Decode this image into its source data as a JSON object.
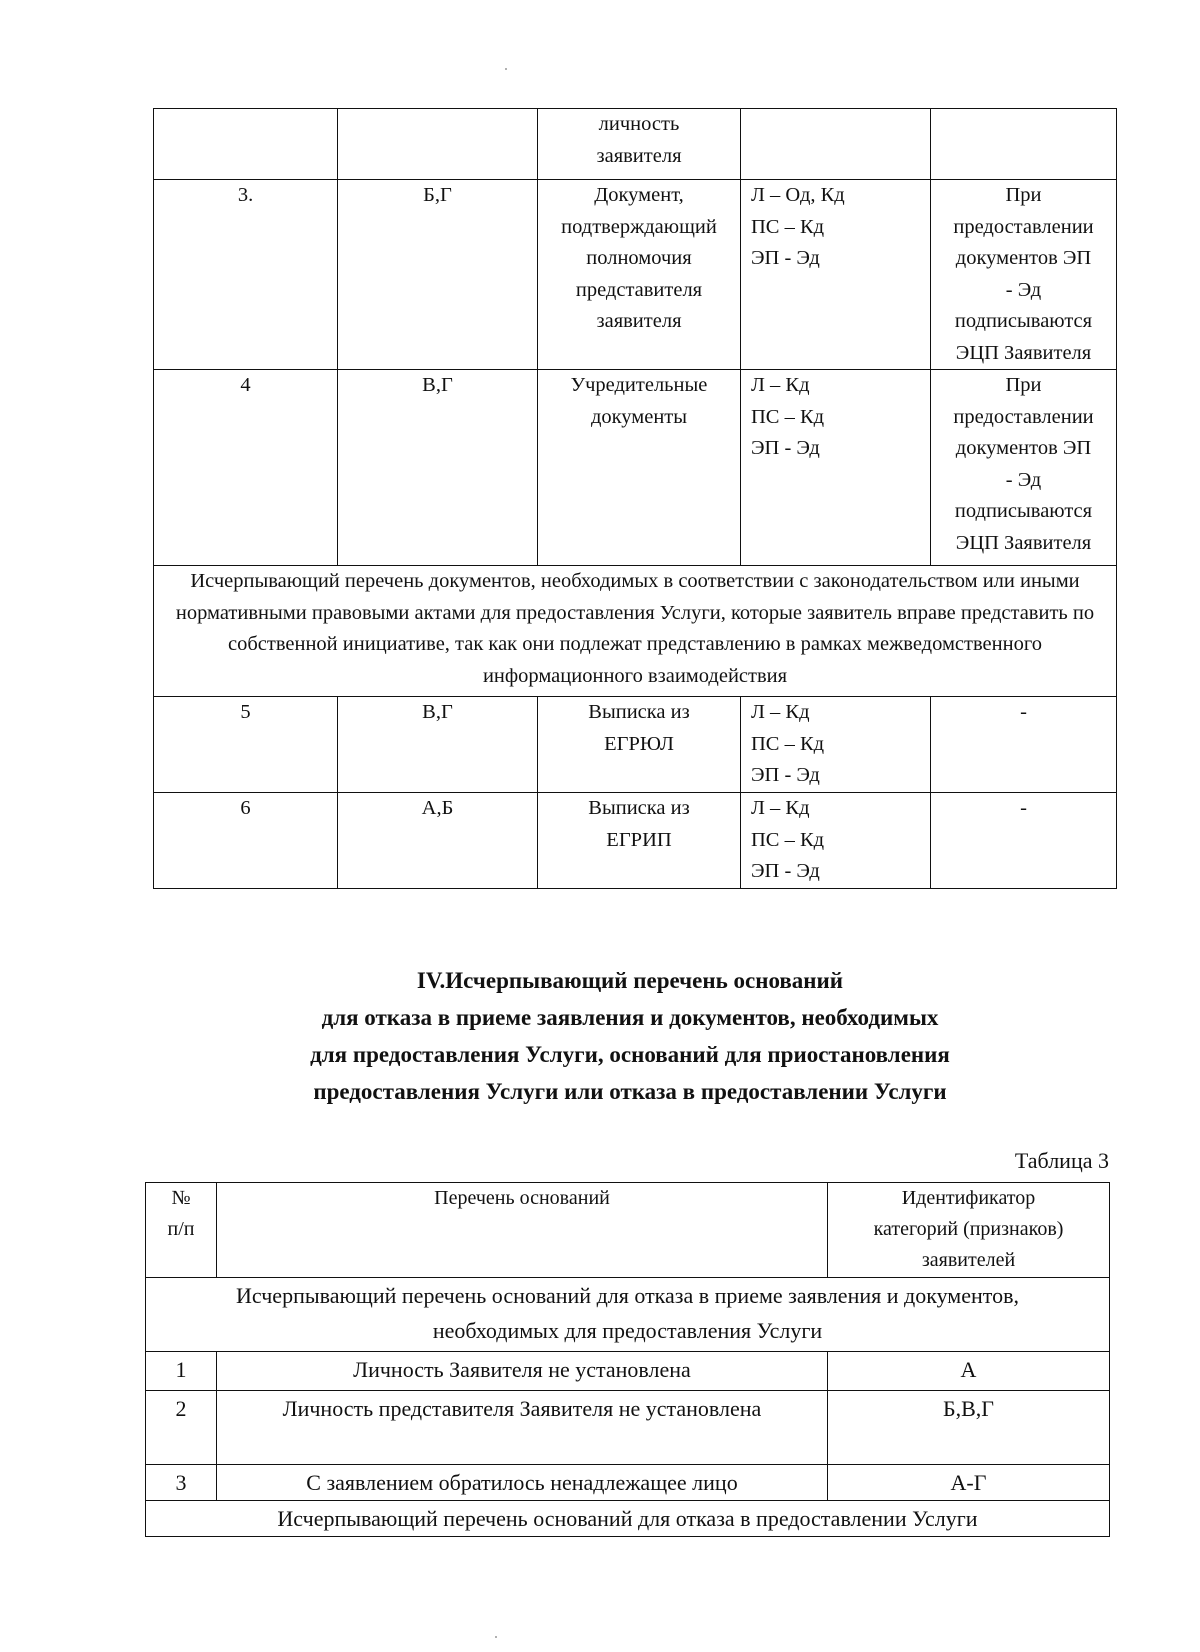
{
  "table2_continued": {
    "rows": [
      {
        "num": "",
        "category": "",
        "document": "личность\nзаявителя",
        "form": "",
        "note": ""
      },
      {
        "num": "3.",
        "category": "Б,Г",
        "document": "Документ,\nподтверждающий\nполномочия\nпредставителя\nзаявителя",
        "form": "Л – Од, Кд\nПС – Кд\nЭП - Эд",
        "note": "При\nпредоставлении\nдокументов ЭП\n- Эд\nподписываются\nЭЦП Заявителя"
      },
      {
        "num": "4",
        "category": "В,Г",
        "document": "Учредительные\nдокументы",
        "form": "Л – Кд\nПС – Кд\nЭП - Эд",
        "note": "При\nпредоставлении\nдокументов ЭП\n- Эд\nподписываются\nЭЦП Заявителя"
      }
    ],
    "section_row": "Исчерпывающий перечень документов, необходимых в соответствии с законодательством или иными нормативными правовыми актами для предоставления Услуги, которые заявитель вправе представить по собственной инициативе, так как они подлежат представлению в рамках межведомственного информационного взаимодействия",
    "rows2": [
      {
        "num": "5",
        "category": "В,Г",
        "document": "Выписка из\nЕГРЮЛ",
        "form": "Л – Кд\nПС – Кд\nЭП - Эд",
        "note": "-"
      },
      {
        "num": "6",
        "category": "А,Б",
        "document": "Выписка из\nЕГРИП",
        "form": "Л – Кд\nПС – Кд\nЭП - Эд",
        "note": "-"
      }
    ]
  },
  "section_heading": "IV.Исчерпывающий перечень оснований\nдля отказа в приеме заявления и документов, необходимых\nдля предоставления Услуги, оснований для приостановления\nпредоставления Услуги или отказа в предоставлении Услуги",
  "table3": {
    "label": "Таблица 3",
    "headers": [
      "№\nп/п",
      "Перечень оснований",
      "Идентификатор\nкатегорий (признаков)\nзаявителей"
    ],
    "section1": "Исчерпывающий перечень оснований для отказа в приеме заявления и документов, необходимых для предоставления Услуги",
    "rows": [
      {
        "num": "1",
        "reason": "Личность Заявителя не установлена",
        "categories": "А"
      },
      {
        "num": "2",
        "reason": "Личность представителя Заявителя не установлена",
        "categories": "Б,В,Г"
      },
      {
        "num": "3",
        "reason": "С заявлением обратилось ненадлежащее лицо",
        "categories": "А-Г"
      }
    ],
    "section2": "Исчерпывающий перечень оснований для отказа в предоставлении Услуги"
  }
}
